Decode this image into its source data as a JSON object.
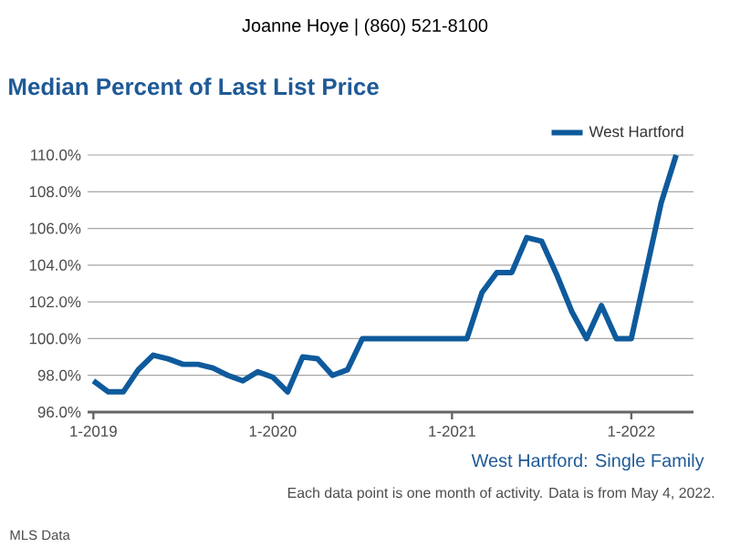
{
  "chart_data": {
    "type": "line",
    "title": "Median Percent of Last List Price",
    "x": [
      "2019-01",
      "2019-02",
      "2019-03",
      "2019-04",
      "2019-05",
      "2019-06",
      "2019-07",
      "2019-08",
      "2019-09",
      "2019-10",
      "2019-11",
      "2019-12",
      "2020-01",
      "2020-02",
      "2020-03",
      "2020-04",
      "2020-05",
      "2020-06",
      "2020-07",
      "2020-08",
      "2020-09",
      "2020-10",
      "2020-11",
      "2020-12",
      "2021-01",
      "2021-02",
      "2021-03",
      "2021-04",
      "2021-05",
      "2021-06",
      "2021-07",
      "2021-08",
      "2021-09",
      "2021-10",
      "2021-11",
      "2021-12",
      "2022-01",
      "2022-02",
      "2022-03",
      "2022-04"
    ],
    "series": [
      {
        "name": "West Hartford",
        "color": "#0e5a9c",
        "values": [
          97.7,
          97.1,
          97.1,
          98.3,
          99.1,
          98.9,
          98.6,
          98.6,
          98.4,
          98.0,
          97.7,
          98.2,
          97.9,
          97.1,
          99.0,
          98.9,
          98.0,
          98.3,
          100.0,
          100.0,
          100.0,
          100.0,
          100.0,
          100.0,
          100.0,
          100.0,
          102.5,
          103.6,
          103.6,
          105.5,
          105.3,
          103.5,
          101.5,
          100.0,
          101.8,
          100.0,
          100.0,
          103.7,
          107.4,
          110.0
        ]
      }
    ],
    "xlim": [
      "2018-12-20",
      "2022-05-06"
    ],
    "xticks": [
      {
        "value": "2019-01",
        "label": "1-2019"
      },
      {
        "value": "2020-01",
        "label": "1-2020"
      },
      {
        "value": "2021-01",
        "label": "1-2021"
      },
      {
        "value": "2022-01",
        "label": "1-2022"
      }
    ],
    "ylim": [
      96,
      110
    ],
    "yticks": [
      {
        "value": 96,
        "label": "96.0%"
      },
      {
        "value": 98,
        "label": "98.0%"
      },
      {
        "value": 100,
        "label": "100.0%"
      },
      {
        "value": 102,
        "label": "102.0%"
      },
      {
        "value": 104,
        "label": "104.0%"
      },
      {
        "value": 106,
        "label": "106.0%"
      },
      {
        "value": 108,
        "label": "108.0%"
      },
      {
        "value": 110,
        "label": "110.0%"
      }
    ],
    "grid": "y",
    "legend": "top right",
    "marker": "none",
    "line_style": "solid",
    "annotations": [
      "Joanne Hoye | (860) 521-8100",
      "West Hartford: Single Family",
      "Each data point is one month of activity. Data is from May 4, 2022.",
      "MLS Data"
    ]
  }
}
